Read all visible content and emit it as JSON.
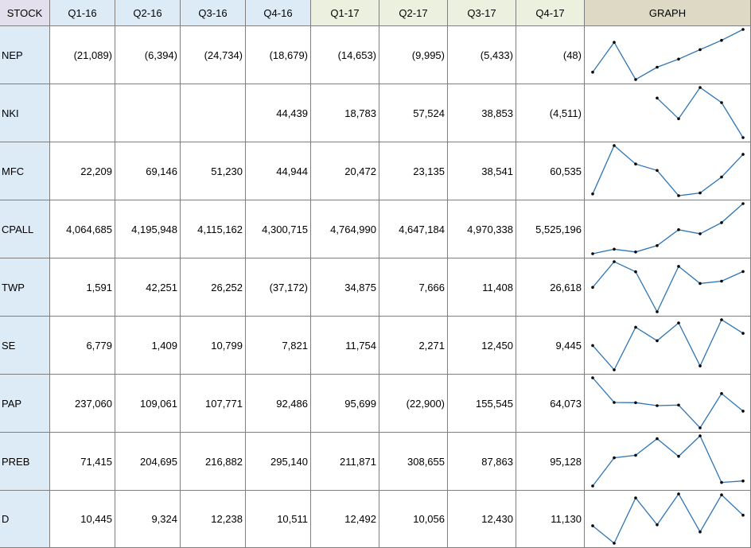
{
  "colors": {
    "stock_header_bg": "#e4dfec",
    "q16_header_bg": "#ddebf7",
    "q17_header_bg": "#ebf1de",
    "graph_header_bg": "#ddd9c4",
    "stock_col_bg": "#ddebf7",
    "line": "#2e75b6",
    "marker": "#000000"
  },
  "headers": {
    "stock": "STOCK",
    "quarters": [
      "Q1-16",
      "Q2-16",
      "Q3-16",
      "Q4-16",
      "Q1-17",
      "Q2-17",
      "Q3-17",
      "Q4-17"
    ],
    "graph": "GRAPH"
  },
  "rows": [
    {
      "stock": "NEP",
      "display": [
        "(21,089)",
        "(6,394)",
        "(24,734)",
        "(18,679)",
        "(14,653)",
        "(9,995)",
        "(5,433)",
        "(48)"
      ]
    },
    {
      "stock": "NKI",
      "display": [
        "",
        "",
        "",
        "44,439",
        "18,783",
        "57,524",
        "38,853",
        "(4,511)"
      ]
    },
    {
      "stock": "MFC",
      "display": [
        "22,209",
        "69,146",
        "51,230",
        "44,944",
        "20,472",
        "23,135",
        "38,541",
        "60,535"
      ]
    },
    {
      "stock": "CPALL",
      "display": [
        "4,064,685",
        "4,195,948",
        "4,115,162",
        "4,300,715",
        "4,764,990",
        "4,647,184",
        "4,970,338",
        "5,525,196"
      ]
    },
    {
      "stock": "TWP",
      "display": [
        "1,591",
        "42,251",
        "26,252",
        "(37,172)",
        "34,875",
        "7,666",
        "11,408",
        "26,618"
      ]
    },
    {
      "stock": "SE",
      "display": [
        "6,779",
        "1,409",
        "10,799",
        "7,821",
        "11,754",
        "2,271",
        "12,450",
        "9,445"
      ]
    },
    {
      "stock": "PAP",
      "display": [
        "237,060",
        "109,061",
        "107,771",
        "92,486",
        "95,699",
        "(22,900)",
        "155,545",
        "64,073"
      ]
    },
    {
      "stock": "PREB",
      "display": [
        "71,415",
        "204,695",
        "216,882",
        "295,140",
        "211,871",
        "308,655",
        "87,863",
        "95,128"
      ]
    },
    {
      "stock": "D",
      "display": [
        "10,445",
        "9,324",
        "12,238",
        "10,511",
        "12,492",
        "10,056",
        "12,430",
        "11,130"
      ]
    }
  ]
}
